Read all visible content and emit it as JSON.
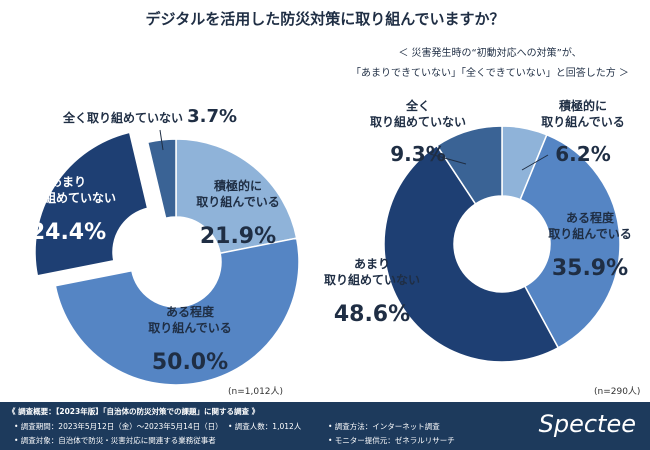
{
  "title": "デジタルを活用した防災対策に取り組んでいますか？",
  "subtitle_line1": "＜ 災害発生時の“初動対応への対策”が、",
  "subtitle_line2": "「あまりできていない」「全くできていない」と回答した方 ＞",
  "chart_data": [
    {
      "type": "pie",
      "note": "(n=1,012人)",
      "slices": [
        {
          "label": "積極的に取り組んでいる",
          "lines": [
            "積極的に",
            "取り組んでいる"
          ],
          "value": 21.9,
          "value_text": "21.9%",
          "color": "#8fb3d9"
        },
        {
          "label": "ある程度取り組んでいる",
          "lines": [
            "ある程度",
            "取り組んでいる"
          ],
          "value": 50.0,
          "value_text": "50.0%",
          "color": "#5585c4"
        },
        {
          "label": "あまり取り組めていない",
          "lines": [
            "あまり",
            "取り組めていない"
          ],
          "value": 24.4,
          "value_text": "24.4%",
          "color": "#1e3f73"
        },
        {
          "label": "全く取り組めていない",
          "lines": [
            "全く取り組めていない"
          ],
          "value": 3.7,
          "value_text": "3.7%",
          "color": "#3a6395"
        }
      ]
    },
    {
      "type": "pie",
      "note": "(n=290人)",
      "slices": [
        {
          "label": "積極的に取り組んでいる",
          "lines": [
            "積極的に",
            "取り組んでいる"
          ],
          "value": 6.2,
          "value_text": "6.2%",
          "color": "#8fb3d9"
        },
        {
          "label": "ある程度取り組んでいる",
          "lines": [
            "ある程度",
            "取り組んでいる"
          ],
          "value": 35.9,
          "value_text": "35.9%",
          "color": "#5585c4"
        },
        {
          "label": "あまり取り組めていない",
          "lines": [
            "あまり",
            "取り組めていない"
          ],
          "value": 48.6,
          "value_text": "48.6%",
          "color": "#1e3f73"
        },
        {
          "label": "全く取り組めていない",
          "lines": [
            "全く",
            "取り組めていない"
          ],
          "value": 9.3,
          "value_text": "9.3%",
          "color": "#3a6395"
        }
      ]
    }
  ],
  "footer": {
    "heading": "《 調査概要：【2023年版】「自治体の防災対策での課題」に関する調査 》",
    "period": "• 調査期間：2023年5月12日（金）〜2023年5月14日（日）",
    "respondents": "• 調査人数：1,012人",
    "method": "• 調査方法：インターネット調査",
    "target": "• 調査対象：自治体で防災・災害対応に関連する業務従事者",
    "provider": "• モニター提供元：ゼネラルリサーチ"
  },
  "logo_text": "Spectee"
}
